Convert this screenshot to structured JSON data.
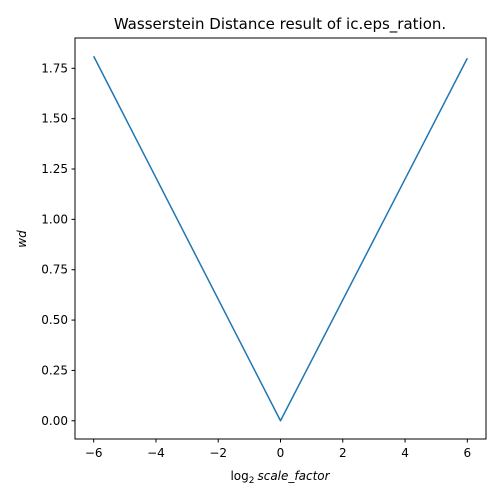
{
  "chart_data": {
    "type": "line",
    "title": "Wasserstein Distance result of ic.eps_ration.",
    "xlabel_prefix": "log",
    "xlabel_subscript": "2",
    "xlabel_var": "scale_factor",
    "ylabel": "wd",
    "xlim": [
      -6.6,
      6.6
    ],
    "ylim": [
      -0.0905,
      1.9005
    ],
    "xticks": [
      -6,
      -4,
      -2,
      0,
      2,
      4,
      6
    ],
    "xtick_labels": [
      "−6",
      "−4",
      "−2",
      "0",
      "2",
      "4",
      "6"
    ],
    "yticks": [
      0.0,
      0.25,
      0.5,
      0.75,
      1.0,
      1.25,
      1.5,
      1.75
    ],
    "ytick_labels": [
      "0.00",
      "0.25",
      "0.50",
      "0.75",
      "1.00",
      "1.25",
      "1.50",
      "1.75"
    ],
    "grid": false,
    "series": [
      {
        "color": "#1f77b4",
        "x": [
          -6,
          0,
          6
        ],
        "y": [
          1.81,
          0.0,
          1.8
        ]
      }
    ]
  }
}
